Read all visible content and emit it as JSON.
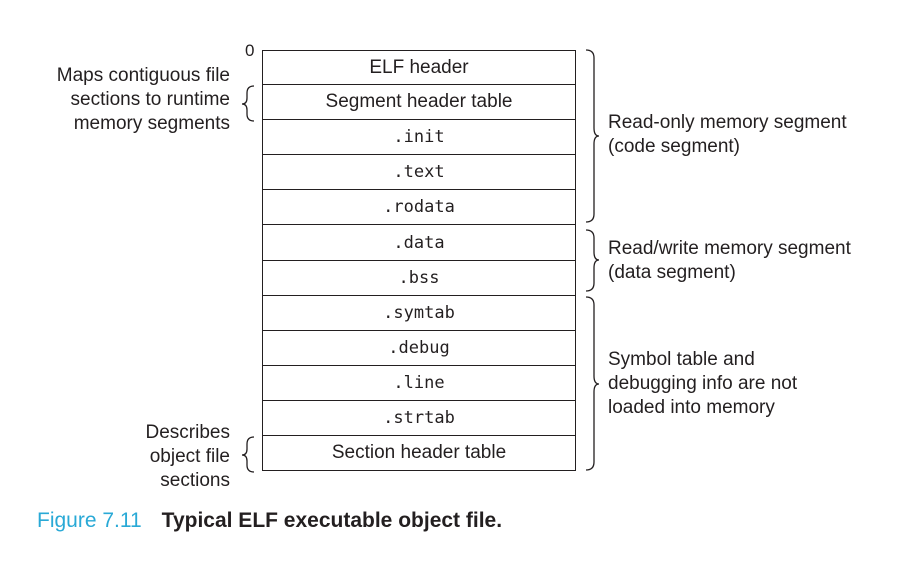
{
  "offset_label": "0",
  "sections": [
    {
      "label": "ELF header",
      "mono": false
    },
    {
      "label": "Segment header table",
      "mono": false
    },
    {
      "label": ".init",
      "mono": true
    },
    {
      "label": ".text",
      "mono": true
    },
    {
      "label": ".rodata",
      "mono": true
    },
    {
      "label": ".data",
      "mono": true
    },
    {
      "label": ".bss",
      "mono": true
    },
    {
      "label": ".symtab",
      "mono": true
    },
    {
      "label": ".debug",
      "mono": true
    },
    {
      "label": ".line",
      "mono": true
    },
    {
      "label": ".strtab",
      "mono": true
    },
    {
      "label": "Section header table",
      "mono": false
    }
  ],
  "left_notes": {
    "segment_table": [
      "Maps contiguous file",
      "sections to runtime",
      "memory segments"
    ],
    "section_table": [
      "Describes",
      "object file",
      "sections"
    ]
  },
  "right_notes": {
    "readonly": [
      "Read-only memory segment",
      "(code segment)"
    ],
    "readwrite": [
      "Read/write memory segment",
      "(data segment)"
    ],
    "not_loaded": [
      "Symbol table and",
      "debugging info are not",
      "loaded into memory"
    ]
  },
  "caption": {
    "number": "Figure 7.11",
    "title": "Typical ELF executable object file."
  }
}
